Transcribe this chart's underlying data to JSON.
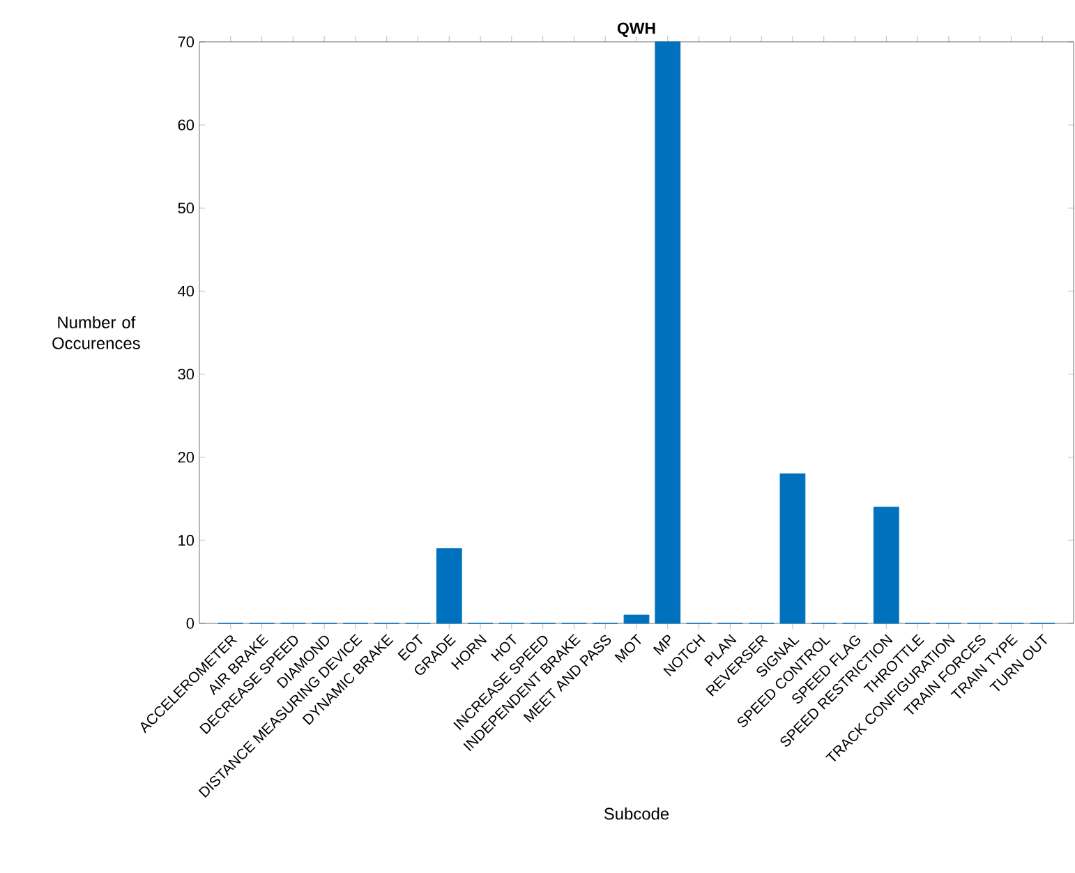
{
  "chart_data": {
    "type": "bar",
    "title": "QWH",
    "xlabel": "Subcode",
    "ylabel": "Number of Occurences",
    "categories": [
      "ACCELEROMETER",
      "AIR BRAKE",
      "DECREASE SPEED",
      "DIAMOND",
      "DISTANCE MEASURING DEVICE",
      "DYNAMIC BRAKE",
      "EOT",
      "GRADE",
      "HORN",
      "HOT",
      "INCREASE SPEED",
      "INDEPENDENT BRAKE",
      "MEET AND PASS",
      "MOT",
      "MP",
      "NOTCH",
      "PLAN",
      "REVERSER",
      "SIGNAL",
      "SPEED CONTROL",
      "SPEED FLAG",
      "SPEED RESTRICTION",
      "THROTTLE",
      "TRACK CONFIGURATION",
      "TRAIN FORCES",
      "TRAIN TYPE",
      "TURN OUT"
    ],
    "values": [
      0,
      0,
      0,
      0,
      0,
      0,
      0,
      9,
      0,
      0,
      0,
      0,
      0,
      1,
      70,
      0,
      0,
      0,
      18,
      0,
      0,
      14,
      0,
      0,
      0,
      0,
      0
    ],
    "color": "#0072bd",
    "ylim": [
      0,
      70
    ],
    "yticks": [
      0,
      10,
      20,
      30,
      40,
      50,
      60,
      70
    ]
  }
}
